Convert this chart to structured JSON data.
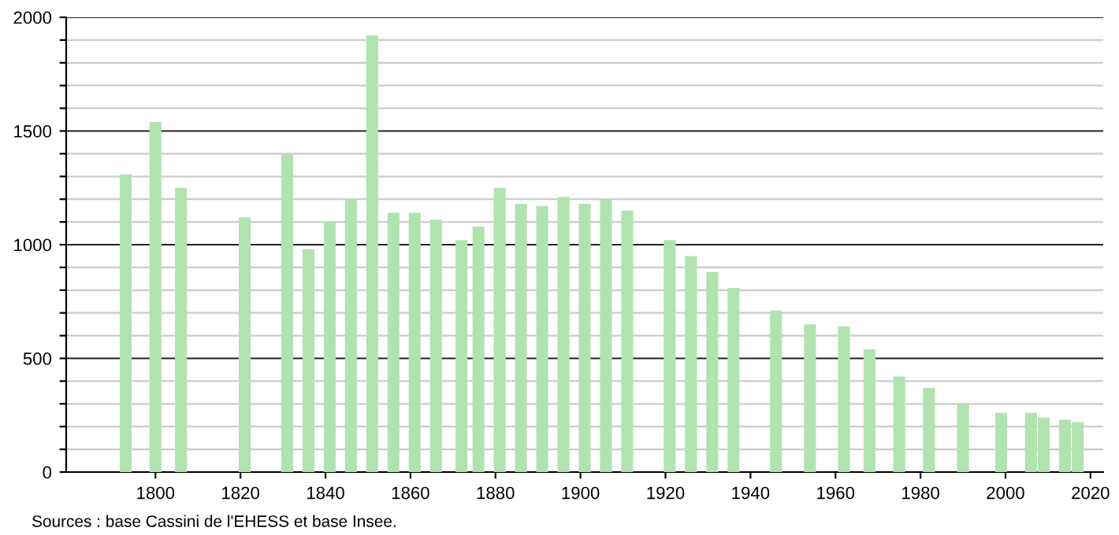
{
  "chart_data": {
    "type": "bar",
    "x": [
      1793,
      1800,
      1806,
      1821,
      1831,
      1836,
      1841,
      1846,
      1851,
      1856,
      1861,
      1866,
      1872,
      1876,
      1881,
      1886,
      1891,
      1896,
      1901,
      1906,
      1911,
      1921,
      1926,
      1931,
      1936,
      1946,
      1954,
      1962,
      1968,
      1975,
      1982,
      1990,
      1999,
      2006,
      2009,
      2014,
      2017
    ],
    "values": [
      1310,
      1540,
      1250,
      1120,
      1400,
      980,
      1100,
      1200,
      1920,
      1140,
      1140,
      1110,
      1020,
      1080,
      1250,
      1180,
      1170,
      1210,
      1180,
      1200,
      1150,
      1020,
      950,
      880,
      810,
      710,
      650,
      640,
      540,
      420,
      370,
      300,
      260,
      260,
      240,
      230,
      220
    ],
    "color": "#b0e3b0",
    "xlim": [
      1779,
      2023
    ],
    "xticks": [
      1800,
      1820,
      1840,
      1860,
      1880,
      1900,
      1920,
      1940,
      1960,
      1980,
      2000,
      2020
    ],
    "ylim": [
      0,
      2000
    ],
    "yticks": [
      0,
      {
        "value": 100,
        "label": null
      },
      {
        "value": 200,
        "label": null
      },
      {
        "value": 300,
        "label": null
      },
      {
        "value": 400,
        "label": null
      },
      500,
      {
        "value": 600,
        "label": null
      },
      {
        "value": 700,
        "label": null
      },
      {
        "value": 800,
        "label": null
      },
      {
        "value": 900,
        "label": null
      },
      1000,
      {
        "value": 1100,
        "label": null
      },
      {
        "value": 1200,
        "label": null
      },
      {
        "value": 1300,
        "label": null
      },
      {
        "value": 1400,
        "label": null
      },
      1500,
      {
        "value": 1600,
        "label": null
      },
      {
        "value": 1700,
        "label": null
      },
      {
        "value": 1800,
        "label": null
      },
      {
        "value": 1900,
        "label": null
      },
      2000
    ],
    "grid": "y",
    "annotations": [
      "Sources : base Cassini de l'EHESS et base Insee."
    ]
  }
}
